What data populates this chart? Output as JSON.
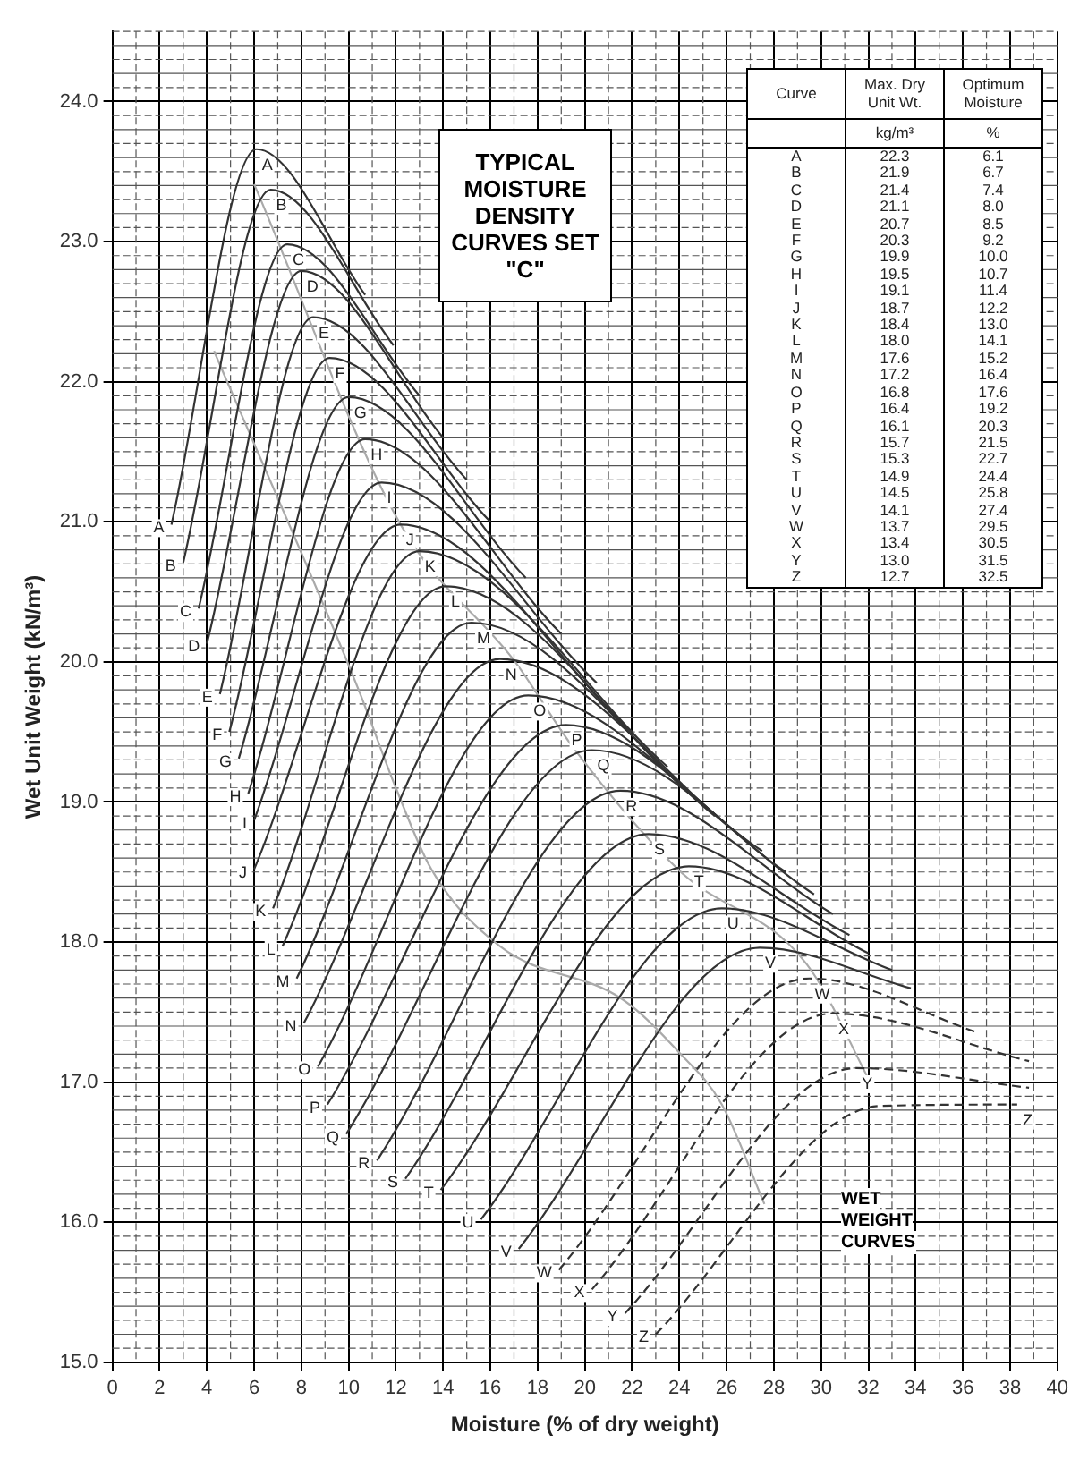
{
  "chart_data": {
    "type": "line",
    "title": "TYPICAL MOISTURE DENSITY CURVES SET \"C\"",
    "xlabel": "Moisture (% of dry weight)",
    "ylabel": "Wet Unit Weight (kN/m³)",
    "xlim": [
      0,
      40
    ],
    "xticks": [
      0,
      2,
      4,
      6,
      8,
      10,
      12,
      14,
      16,
      18,
      20,
      22,
      24,
      26,
      28,
      30,
      32,
      34,
      36,
      38,
      40
    ],
    "ylim": [
      15,
      24.5
    ],
    "yticks": [
      {
        "value": 15,
        "label": "15.0"
      },
      {
        "value": 16,
        "label": "16.0"
      },
      {
        "value": 17,
        "label": "17.0"
      },
      {
        "value": 18,
        "label": "18.0"
      },
      {
        "value": 19,
        "label": "19.0"
      },
      {
        "value": 20,
        "label": "20.0"
      },
      {
        "value": 21,
        "label": "21.0"
      },
      {
        "value": 22,
        "label": "22.0"
      },
      {
        "value": 23,
        "label": "23.0"
      },
      {
        "value": 24,
        "label": "24.0"
      }
    ],
    "grid": true,
    "legend": false,
    "marker": "none",
    "line_style": "solid",
    "annotations": [
      "WET WEIGHT CURVES",
      "Curve",
      "Max. Dry Unit Wt.",
      "Optimum Moisture",
      "kg/m³",
      "%",
      "A 22.3 6.1",
      "B 21.9 6.7",
      "C 21.4 7.4",
      "D 21.1 8.0",
      "E 20.7 8.5",
      "F 20.3 9.2",
      "G 19.9 10.0",
      "H 19.5 10.7",
      "I 19.1 11.4",
      "J 18.7 12.2",
      "K 18.4 13.0",
      "L 18.0 14.1",
      "M 17.6 15.2",
      "N 17.2 16.4",
      "O 16.8 17.6",
      "P 16.4 19.2",
      "Q 16.1 20.3",
      "R 15.7 21.5",
      "S 15.3 22.7",
      "T 14.9 24.4",
      "U 14.5 25.8",
      "V 14.1 27.4",
      "W 13.7 29.5",
      "X 13.4 30.5",
      "Y 13.0 31.5",
      "Z 12.7 32.5"
    ],
    "series": [
      {
        "name": "A",
        "color": "#333333",
        "x": [
          2.5,
          6.1,
          10.7
        ],
        "values": [
          20.98,
          23.66,
          22.62
        ]
      },
      {
        "name": "B",
        "color": "#333333",
        "x": [
          3.0,
          6.7,
          11.9
        ],
        "values": [
          20.71,
          23.37,
          22.26
        ]
      },
      {
        "name": "C",
        "color": "#333333",
        "x": [
          3.65,
          7.4,
          13.0
        ],
        "values": [
          20.38,
          22.98,
          21.9
        ]
      },
      {
        "name": "D",
        "color": "#333333",
        "x": [
          4.0,
          8.0,
          14.0
        ],
        "values": [
          20.13,
          22.79,
          21.6
        ]
      },
      {
        "name": "E",
        "color": "#333333",
        "x": [
          4.55,
          8.5,
          15.0
        ],
        "values": [
          19.77,
          22.46,
          21.3
        ]
      },
      {
        "name": "F",
        "color": "#333333",
        "x": [
          4.95,
          9.2,
          16.0
        ],
        "values": [
          19.5,
          22.17,
          21.0
        ]
      },
      {
        "name": "G",
        "color": "#333333",
        "x": [
          5.35,
          10.0,
          17.5
        ],
        "values": [
          19.31,
          21.89,
          20.6
        ]
      },
      {
        "name": "H",
        "color": "#333333",
        "x": [
          5.75,
          10.7,
          19.0
        ],
        "values": [
          19.06,
          21.59,
          20.2
        ]
      },
      {
        "name": "I",
        "color": "#333333",
        "x": [
          6.0,
          11.4,
          20.5
        ],
        "values": [
          18.87,
          21.28,
          19.85
        ]
      },
      {
        "name": "J",
        "color": "#333333",
        "x": [
          6.0,
          12.2,
          22.0
        ],
        "values": [
          18.52,
          20.98,
          19.5
        ]
      },
      {
        "name": "K",
        "color": "#333333",
        "x": [
          6.8,
          13.0,
          23.5
        ],
        "values": [
          18.24,
          20.79,
          19.25
        ]
      },
      {
        "name": "L",
        "color": "#333333",
        "x": [
          7.2,
          14.1,
          24.5
        ],
        "values": [
          17.97,
          20.54,
          19.05
        ]
      },
      {
        "name": "M",
        "color": "#333333",
        "x": [
          7.8,
          15.2,
          25.5
        ],
        "values": [
          17.74,
          20.28,
          18.9
        ]
      },
      {
        "name": "N",
        "color": "#333333",
        "x": [
          8.1,
          16.4,
          26.8
        ],
        "values": [
          17.42,
          20.02,
          18.73
        ]
      },
      {
        "name": "O",
        "color": "#333333",
        "x": [
          8.7,
          17.6,
          27.5
        ],
        "values": [
          17.11,
          19.76,
          18.65
        ]
      },
      {
        "name": "P",
        "color": "#333333",
        "x": [
          9.1,
          19.2,
          28.5
        ],
        "values": [
          16.84,
          19.55,
          18.5
        ]
      },
      {
        "name": "Q",
        "color": "#333333",
        "x": [
          9.9,
          20.3,
          29.7
        ],
        "values": [
          16.63,
          19.37,
          18.34
        ]
      },
      {
        "name": "R",
        "color": "#333333",
        "x": [
          11.2,
          21.5,
          30.5
        ],
        "values": [
          16.44,
          19.08,
          18.2
        ]
      },
      {
        "name": "S",
        "color": "#333333",
        "x": [
          12.4,
          22.7,
          31.2
        ],
        "values": [
          16.31,
          18.77,
          18.05
        ]
      },
      {
        "name": "T",
        "color": "#333333",
        "x": [
          13.9,
          24.4,
          32.0
        ],
        "values": [
          16.23,
          18.54,
          17.92
        ]
      },
      {
        "name": "U",
        "color": "#333333",
        "x": [
          15.6,
          25.8,
          33.0
        ],
        "values": [
          16.02,
          18.24,
          17.8
        ]
      },
      {
        "name": "V",
        "color": "#333333",
        "x": [
          17.2,
          27.4,
          33.8
        ],
        "values": [
          15.81,
          17.96,
          17.67
        ]
      },
      {
        "name": "W",
        "color": "#333333",
        "line_style": "dashed",
        "x": [
          18.9,
          29.5,
          36.7
        ],
        "values": [
          15.66,
          17.74,
          17.35
        ]
      },
      {
        "name": "X",
        "color": "#333333",
        "line_style": "dashed",
        "x": [
          20.3,
          30.5,
          38.8
        ],
        "values": [
          15.52,
          17.49,
          17.15
        ]
      },
      {
        "name": "Y",
        "color": "#333333",
        "line_style": "dashed",
        "x": [
          21.7,
          31.5,
          38.8
        ],
        "values": [
          15.35,
          17.1,
          16.96
        ]
      },
      {
        "name": "Z",
        "color": "#333333",
        "line_style": "dashed",
        "x": [
          23.0,
          32.5,
          38.3
        ],
        "values": [
          15.2,
          16.83,
          16.84
        ]
      },
      {
        "color": "#aaaaaa",
        "x": [
          4.3,
          10.4,
          12.0,
          13.5,
          16.4,
          21.6,
          24.0,
          25.8,
          27.6
        ],
        "values": [
          22.22,
          19.81,
          19.1,
          18.52,
          17.97,
          17.59,
          17.21,
          16.84,
          16.13
        ]
      },
      {
        "color": "#aaaaaa",
        "x": [
          6.0,
          12.2,
          17.05,
          19.5,
          24.0,
          29.4,
          32.2
        ],
        "values": [
          23.41,
          20.98,
          20.0,
          19.39,
          18.51,
          17.84,
          16.96
        ]
      }
    ]
  }
}
